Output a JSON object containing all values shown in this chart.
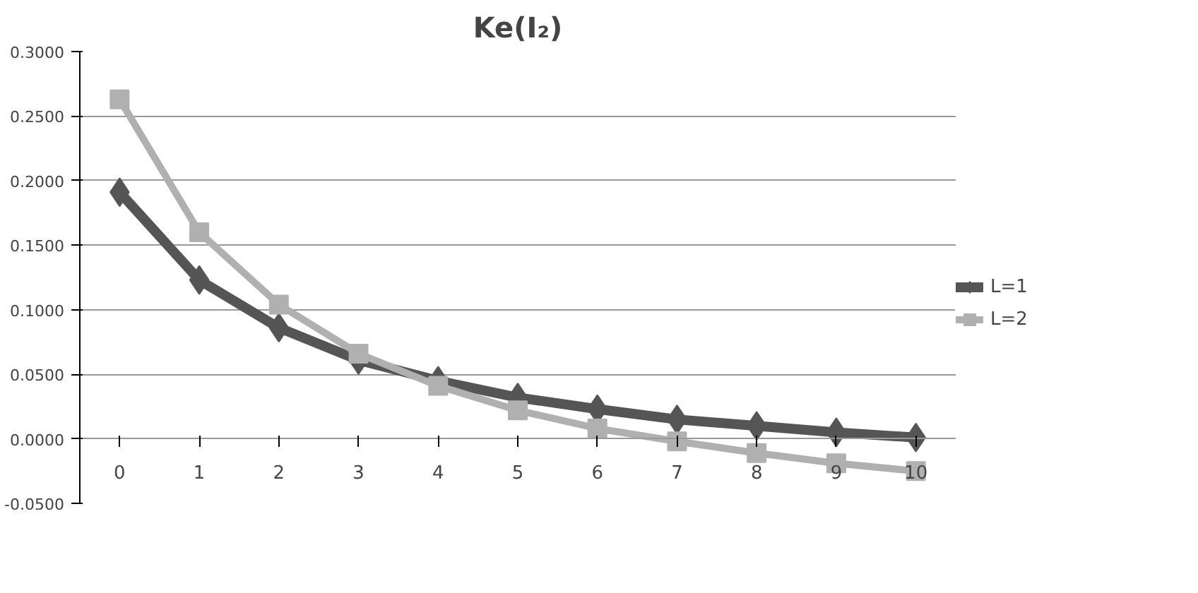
{
  "chart_data": {
    "type": "line",
    "title": "Ke(I₂)",
    "categories": [
      "0",
      "1",
      "2",
      "3",
      "4",
      "5",
      "6",
      "7",
      "8",
      "9",
      "10"
    ],
    "series": [
      {
        "name": "L=1",
        "color": "#555555",
        "marker": "diamond",
        "values": [
          0.191,
          0.123,
          0.086,
          0.061,
          0.045,
          0.032,
          0.023,
          0.015,
          0.01,
          0.005,
          0.001
        ]
      },
      {
        "name": "L=2",
        "color": "#b0b0b0",
        "marker": "square",
        "values": [
          0.263,
          0.16,
          0.104,
          0.066,
          0.041,
          0.022,
          0.008,
          -0.002,
          -0.011,
          -0.019,
          -0.025
        ]
      }
    ],
    "ylim": [
      -0.05,
      0.3
    ],
    "yticks": [
      {
        "value": -0.05,
        "label": "-0.0500"
      },
      {
        "value": 0,
        "label": "0.0000"
      },
      {
        "value": 0.05,
        "label": "0.0500"
      },
      {
        "value": 0.1,
        "label": "0.1000"
      },
      {
        "value": 0.15,
        "label": "0.1500"
      },
      {
        "value": 0.2,
        "label": "0.2000"
      },
      {
        "value": 0.25,
        "label": "0.2500"
      },
      {
        "value": 0.3,
        "label": "0.3000"
      }
    ],
    "grid": "y",
    "legend": "right",
    "line_style": "solid"
  }
}
